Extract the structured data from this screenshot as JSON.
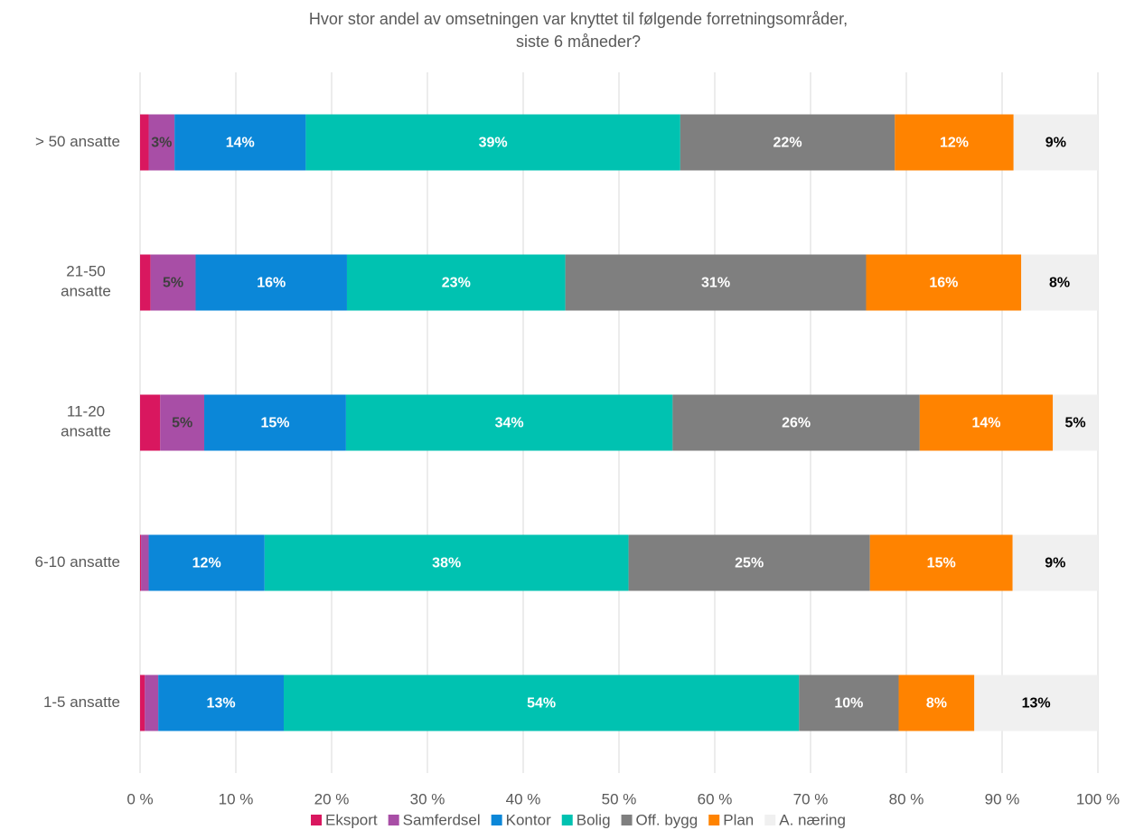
{
  "chart_data": {
    "type": "stacked_barh",
    "title": "Hvor stor andel av omsetningen var knyttet til følgende forretningsområder, siste 6 måneder?",
    "categories": [
      "> 50 ansatte",
      "21-50 ansatte",
      "11-20 ansatte",
      "6-10 ansatte",
      "1-5 ansatte"
    ],
    "series": [
      {
        "name": "Eksport",
        "color": "#d9175f",
        "label_color": "#ffffff",
        "values": [
          0.9,
          1.1,
          2.1,
          0.1,
          0.5
        ],
        "value_labels": [
          null,
          null,
          null,
          null,
          null
        ]
      },
      {
        "name": "Samferdsel",
        "color": "#a84ea6",
        "label_color": "#404040",
        "values": [
          2.7,
          4.7,
          4.6,
          0.8,
          1.4
        ],
        "value_labels": [
          "3%",
          "5%",
          "5%",
          null,
          null
        ]
      },
      {
        "name": "Kontor",
        "color": "#0b87d8",
        "label_color": "#ffffff",
        "values": [
          13.7,
          15.8,
          14.8,
          12.1,
          13.1
        ],
        "value_labels": [
          "14%",
          "16%",
          "15%",
          "12%",
          "13%"
        ]
      },
      {
        "name": "Bolig",
        "color": "#00c2b1",
        "label_color": "#ffffff",
        "values": [
          39.1,
          22.8,
          34.1,
          38.0,
          53.8
        ],
        "value_labels": [
          "39%",
          "23%",
          "34%",
          "38%",
          "54%"
        ]
      },
      {
        "name": "Off. bygg",
        "color": "#7f7f7f",
        "label_color": "#ffffff",
        "values": [
          22.4,
          31.4,
          25.8,
          25.2,
          10.4
        ],
        "value_labels": [
          "22%",
          "31%",
          "26%",
          "25%",
          "10%"
        ]
      },
      {
        "name": "Plan",
        "color": "#ff8300",
        "label_color": "#ffffff",
        "values": [
          12.4,
          16.2,
          13.9,
          14.9,
          7.9
        ],
        "value_labels": [
          "12%",
          "16%",
          "14%",
          "15%",
          "8%"
        ]
      },
      {
        "name": "A. næring",
        "color": "#f0f0f0",
        "label_color": "#000000",
        "values": [
          8.8,
          8.0,
          4.7,
          8.9,
          12.9
        ],
        "value_labels": [
          "9%",
          "8%",
          "5%",
          "9%",
          "13%"
        ]
      }
    ],
    "xlim": [
      0,
      100
    ],
    "xticks": [
      {
        "value": 0,
        "label": "0 %"
      },
      {
        "value": 10,
        "label": "10 %"
      },
      {
        "value": 20,
        "label": "20 %"
      },
      {
        "value": 30,
        "label": "30 %"
      },
      {
        "value": 40,
        "label": "40 %"
      },
      {
        "value": 50,
        "label": "50 %"
      },
      {
        "value": 60,
        "label": "60 %"
      },
      {
        "value": 70,
        "label": "70 %"
      },
      {
        "value": 80,
        "label": "80 %"
      },
      {
        "value": 90,
        "label": "90 %"
      },
      {
        "value": 100,
        "label": "100 %"
      }
    ],
    "grid": true,
    "legend": "bottom"
  }
}
